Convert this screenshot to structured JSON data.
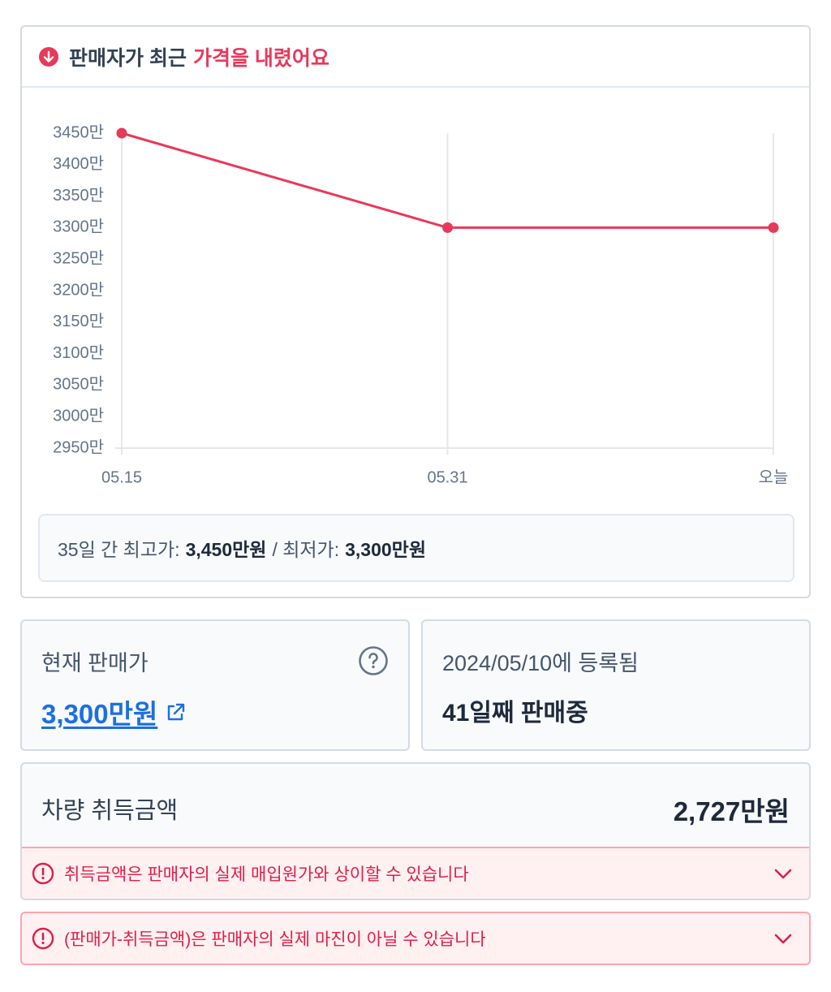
{
  "header": {
    "title": "판매자가 최근",
    "title_highlight": "가격을 내렸어요"
  },
  "chart_data": {
    "type": "line",
    "categories": [
      "05.15",
      "05.31",
      "오늘"
    ],
    "values": [
      3450,
      3300,
      3300
    ],
    "color": "#e8395a",
    "ylim": [
      2950,
      3450
    ],
    "yticks": [
      {
        "value": 2950,
        "label": "2950만"
      },
      {
        "value": 3000,
        "label": "3000만"
      },
      {
        "value": 3050,
        "label": "3050만"
      },
      {
        "value": 3100,
        "label": "3100만"
      },
      {
        "value": 3150,
        "label": "3150만"
      },
      {
        "value": 3200,
        "label": "3200만"
      },
      {
        "value": 3250,
        "label": "3250만"
      },
      {
        "value": 3300,
        "label": "3300만"
      },
      {
        "value": 3350,
        "label": "3350만"
      },
      {
        "value": 3400,
        "label": "3400만"
      },
      {
        "value": 3450,
        "label": "3450만"
      }
    ],
    "grid": "x"
  },
  "summary": {
    "period_label": "35일 간 최고가:",
    "max_price": "3,450만원",
    "min_label": "/ 최저가:",
    "min_price": "3,300만원"
  },
  "current_price": {
    "label": "현재 판매가",
    "value": "3,300만원"
  },
  "listing": {
    "registered": "2024/05/10에 등록됨",
    "days_on_sale": "41일째 판매중"
  },
  "acquisition": {
    "label": "차량 취득금액",
    "value": "2,727만원"
  },
  "warnings": [
    "취득금액은 판매자의 실제 매입원가와 상이할 수 있습니다",
    "(판매가-취득금액)은 판매자의 실제 마진이 아닐 수 있습니다"
  ]
}
